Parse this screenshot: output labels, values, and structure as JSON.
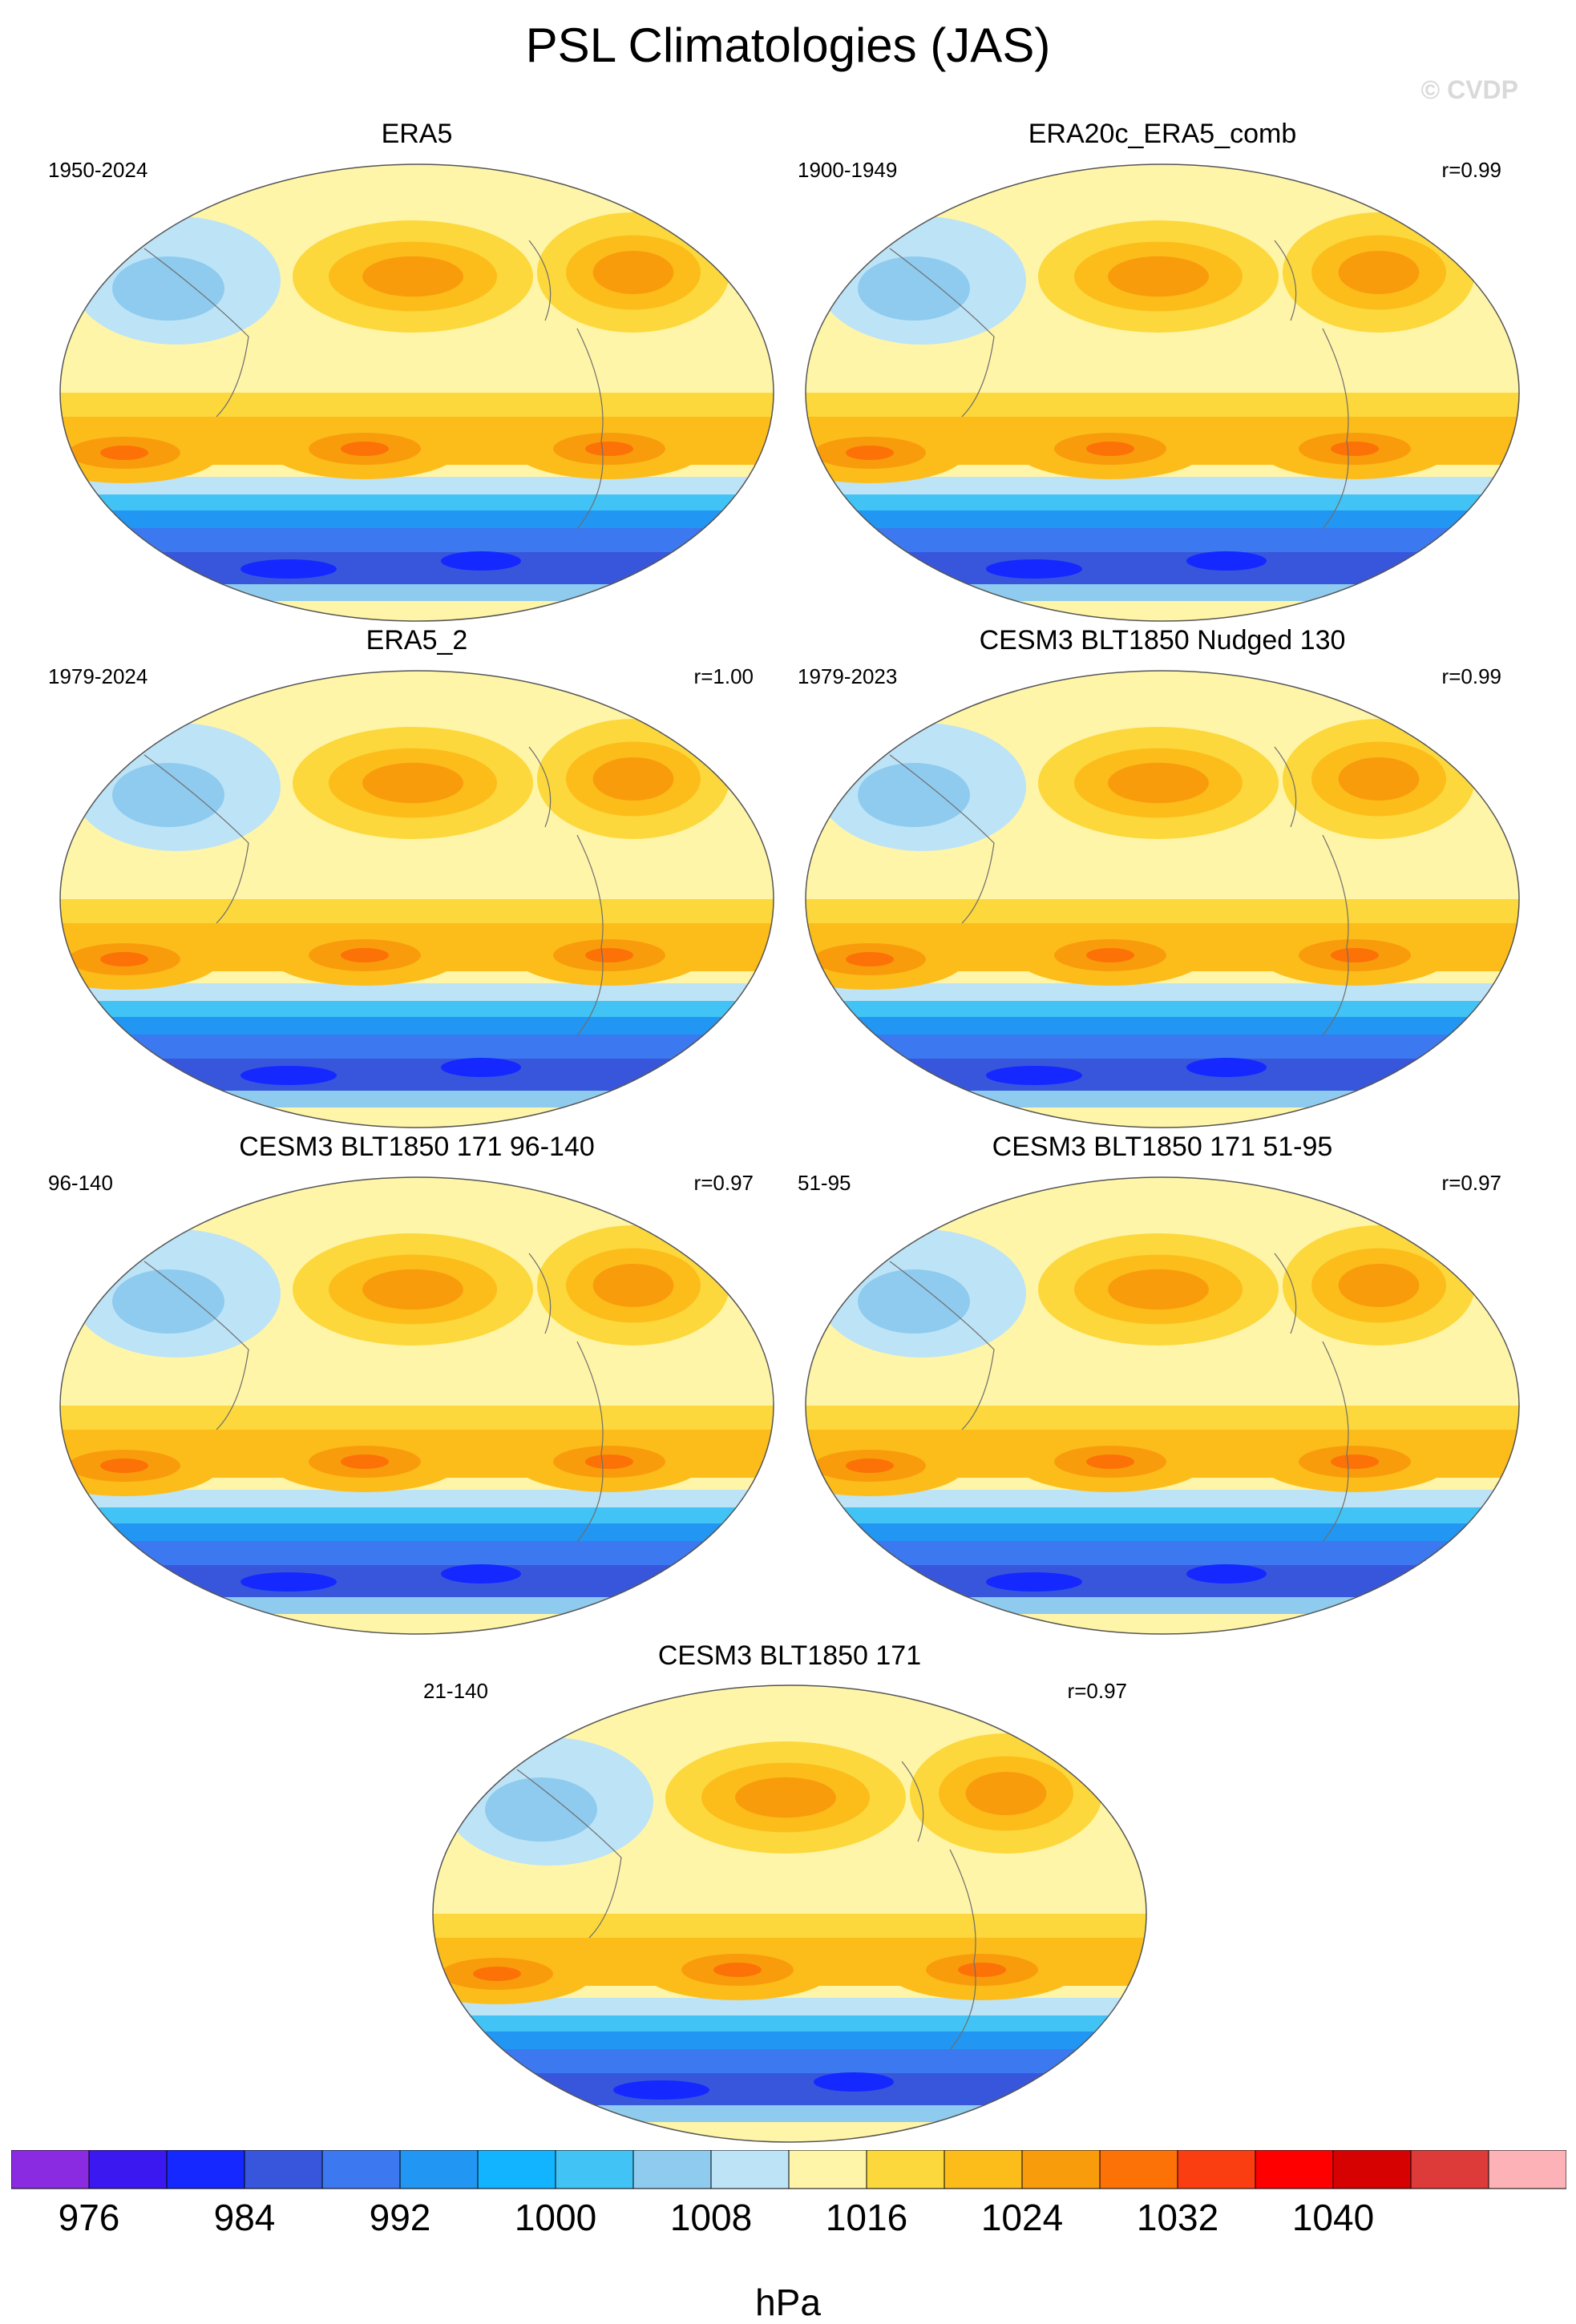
{
  "title": "PSL Climatologies (JAS)",
  "watermark": "© CVDP",
  "chart_data": {
    "type": "heatmap",
    "variable": "PSL",
    "season": "JAS",
    "units": "hPa",
    "colorbar": {
      "levels": [
        976,
        980,
        984,
        988,
        992,
        996,
        1000,
        1004,
        1008,
        1012,
        1016,
        1020,
        1024,
        1028,
        1032,
        1036,
        1040,
        1044
      ],
      "labels": [
        "976",
        "984",
        "992",
        "1000",
        "1008",
        "1016",
        "1024",
        "1032",
        "1040"
      ],
      "colors": [
        "#8a2be2",
        "#3b18f0",
        "#1428ff",
        "#3856db",
        "#3c78f0",
        "#2196f3",
        "#12b4ff",
        "#41c3f5",
        "#8ecbee",
        "#bde3f7",
        "#fff5a8",
        "#fcd83c",
        "#fcbd1b",
        "#f99c0c",
        "#fc7207",
        "#fb3e11",
        "#ff0000",
        "#d60101",
        "#dd3a3a",
        "#fcb2b6"
      ]
    },
    "panels": [
      {
        "title": "ERA5",
        "period": "1950-2024",
        "r": ""
      },
      {
        "title": "ERA20c_ERA5_comb",
        "period": "1900-1949",
        "r": "r=0.99"
      },
      {
        "title": "ERA5_2",
        "period": "1979-2024",
        "r": "r=1.00"
      },
      {
        "title": "CESM3 BLT1850 Nudged 130",
        "period": "1979-2023",
        "r": "r=0.99"
      },
      {
        "title": "CESM3 BLT1850 171 96-140",
        "period": "96-140",
        "r": "r=0.97"
      },
      {
        "title": "CESM3 BLT1850 171 51-95",
        "period": "51-95",
        "r": "r=0.97"
      },
      {
        "title": "CESM3 BLT1850 171",
        "period": "21-140",
        "r": "r=0.97"
      }
    ]
  }
}
